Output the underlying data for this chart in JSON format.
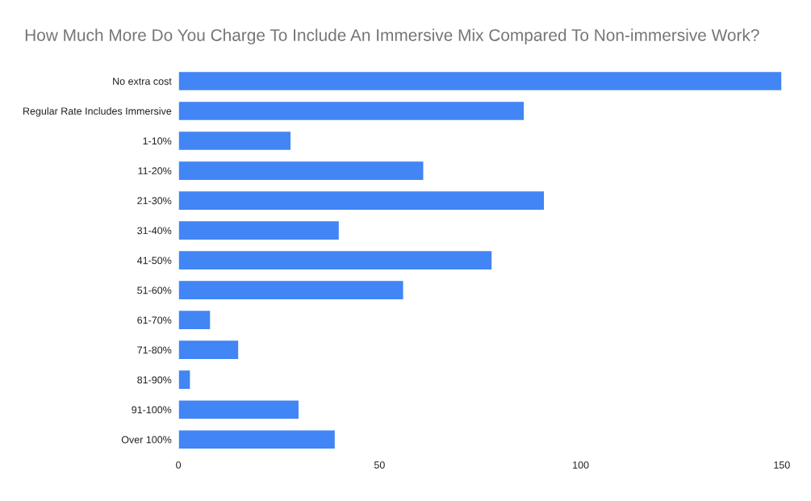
{
  "chart_data": {
    "type": "bar",
    "orientation": "horizontal",
    "title": "How Much More Do You Charge To Include An Immersive Mix Compared To Non-immersive Work?",
    "categories": [
      "No extra cost",
      "Regular Rate Includes Immersive",
      "1-10%",
      "11-20%",
      "21-30%",
      "31-40%",
      "41-50%",
      "51-60%",
      "61-70%",
      "71-80%",
      "81-90%",
      "91-100%",
      "Over 100%"
    ],
    "values": [
      150,
      86,
      28,
      61,
      91,
      40,
      78,
      56,
      8,
      15,
      3,
      30,
      39
    ],
    "color": "#4285f4",
    "xlim": [
      0,
      150
    ],
    "xticks": [
      0,
      50,
      100,
      150
    ],
    "grid": false,
    "legend": false
  }
}
